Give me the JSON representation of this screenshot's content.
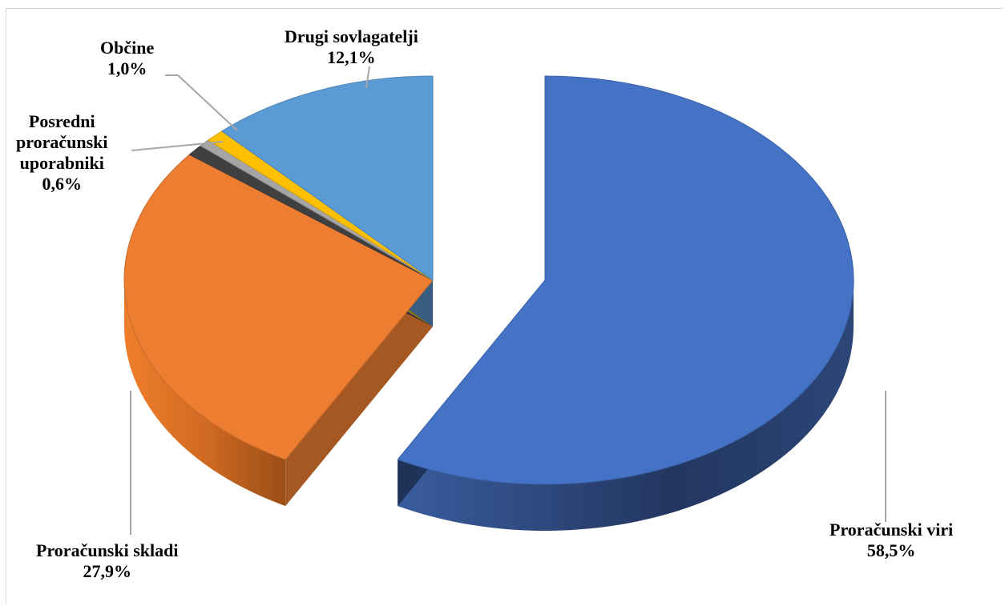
{
  "chart_data": {
    "type": "pie",
    "style": "3d-exploded",
    "title": "",
    "legend": "none",
    "labels": {
      "proracunski_viri": "Proračunski viri",
      "proracunski_skladi": "Proračunski skladi",
      "posredni_line1": "Posredni",
      "posredni_line2": "proračunski",
      "posredni_line3": "uporabniki",
      "obcine": "Občine",
      "drugi": "Drugi sovlagatelji"
    },
    "value_labels": {
      "proracunski_viri": "58,5%",
      "proracunski_skladi": "27,9%",
      "posredni": "0,6%",
      "obcine": "1,0%",
      "drugi": "12,1%"
    },
    "slices": [
      {
        "key": "proracunski_viri",
        "value": 58.5,
        "color": "#4472c4",
        "exploded": true
      },
      {
        "key": "proracunski_skladi",
        "value": 27.9,
        "color": "#ed7d31",
        "exploded": false
      },
      {
        "key": "dark_slice",
        "value": 0.9,
        "color": "#404040",
        "exploded": false
      },
      {
        "key": "posredni",
        "value": 0.6,
        "color": "#a5a5a5",
        "exploded": false
      },
      {
        "key": "obcine",
        "value": 1.0,
        "color": "#ffc000",
        "exploded": false
      },
      {
        "key": "drugi",
        "value": 12.1,
        "color": "#5b9bd5",
        "exploded": false
      }
    ]
  }
}
